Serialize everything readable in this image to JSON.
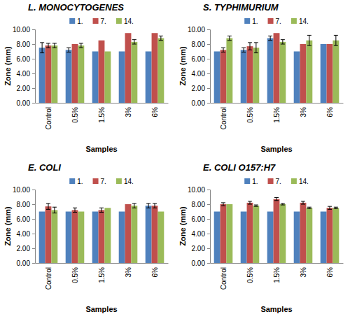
{
  "chart_data": [
    {
      "type": "bar",
      "title": "L. MONOCYTOGENES",
      "x_label": "Samples",
      "y_label": "Zone (mm)",
      "categories": [
        "Control",
        "0.5%",
        "1.5%",
        "3%",
        "6%"
      ],
      "series": [
        {
          "name": "1.",
          "color": "#4f81bd",
          "values": [
            7.5,
            7.2,
            7.0,
            7.0,
            7.0
          ],
          "errors": [
            0.7,
            0.3,
            0,
            0,
            0
          ]
        },
        {
          "name": "7.",
          "color": "#c0504d",
          "values": [
            7.8,
            8.0,
            8.5,
            9.5,
            9.5
          ],
          "errors": [
            0.3,
            0,
            0,
            0,
            0
          ]
        },
        {
          "name": "14.",
          "color": "#9bbb59",
          "values": [
            7.8,
            7.8,
            7.0,
            8.3,
            8.8
          ],
          "errors": [
            0.3,
            0.3,
            0,
            0.3,
            0.3
          ]
        }
      ],
      "ylim": [
        0,
        10
      ],
      "yticks": [
        {
          "value": 0,
          "label": "0.00"
        },
        {
          "value": 2,
          "label": "2.00"
        },
        {
          "value": 4,
          "label": "4.00"
        },
        {
          "value": 6,
          "label": "6.00"
        },
        {
          "value": 8,
          "label": "8.00"
        },
        {
          "value": 10,
          "label": "10.00"
        }
      ],
      "grid": false,
      "legend": "top"
    },
    {
      "type": "bar",
      "title": "S. TYPHIMURIUM",
      "x_label": "Samples",
      "y_label": "Zone (mm)",
      "categories": [
        "Control",
        "0.5%",
        "1.5%",
        "3%",
        "6%"
      ],
      "series": [
        {
          "name": "1.",
          "color": "#4f81bd",
          "values": [
            7.0,
            7.2,
            8.8,
            7.0,
            8.0
          ],
          "errors": [
            0,
            0.3,
            0.3,
            0,
            0
          ]
        },
        {
          "name": "7.",
          "color": "#c0504d",
          "values": [
            7.2,
            7.7,
            9.5,
            8.0,
            8.0
          ],
          "errors": [
            0.3,
            0.5,
            0,
            0,
            0
          ]
        },
        {
          "name": "14.",
          "color": "#9bbb59",
          "values": [
            8.8,
            7.5,
            8.3,
            8.5,
            8.5
          ],
          "errors": [
            0.3,
            0.7,
            0.3,
            0.7,
            0.7
          ]
        }
      ],
      "ylim": [
        0,
        10
      ],
      "yticks": [
        {
          "value": 0,
          "label": "0.00"
        },
        {
          "value": 2,
          "label": "2.00"
        },
        {
          "value": 4,
          "label": "4.00"
        },
        {
          "value": 6,
          "label": "6.00"
        },
        {
          "value": 8,
          "label": "8.00"
        },
        {
          "value": 10,
          "label": "10.00"
        }
      ],
      "grid": false,
      "legend": "top"
    },
    {
      "type": "bar",
      "title": "E. COLI",
      "x_label": "Samples",
      "y_label": "Zone (mm)",
      "categories": [
        "Control",
        "0.5%",
        "1.5%",
        "3%",
        "6%"
      ],
      "series": [
        {
          "name": "1.",
          "color": "#4f81bd",
          "values": [
            7.0,
            7.0,
            7.0,
            7.0,
            7.8
          ],
          "errors": [
            0,
            0,
            0,
            0,
            0.3
          ]
        },
        {
          "name": "7.",
          "color": "#c0504d",
          "values": [
            7.7,
            7.2,
            7.2,
            8.0,
            7.8
          ],
          "errors": [
            0.4,
            0.3,
            0.3,
            0,
            0.3
          ]
        },
        {
          "name": "14.",
          "color": "#9bbb59",
          "values": [
            7.2,
            7.0,
            7.5,
            7.8,
            7.0
          ],
          "errors": [
            0.4,
            0,
            0,
            0.3,
            0
          ]
        }
      ],
      "ylim": [
        0,
        10
      ],
      "yticks": [
        {
          "value": 0,
          "label": "0.00"
        },
        {
          "value": 2,
          "label": "2.00"
        },
        {
          "value": 4,
          "label": "4.00"
        },
        {
          "value": 6,
          "label": "6.00"
        },
        {
          "value": 8,
          "label": "8.00"
        },
        {
          "value": 10,
          "label": "10.00"
        }
      ],
      "grid": false,
      "legend": "top"
    },
    {
      "type": "bar",
      "title": "E. COLI O157:H7",
      "x_label": "Samples",
      "y_label": "Zone (mm)",
      "categories": [
        "Control",
        "0.5%",
        "1.5%",
        "3%",
        "6%"
      ],
      "series": [
        {
          "name": "1.",
          "color": "#4f81bd",
          "values": [
            7.0,
            7.0,
            7.0,
            7.0,
            7.0
          ],
          "errors": [
            0,
            0,
            0,
            0,
            0
          ]
        },
        {
          "name": "7.",
          "color": "#c0504d",
          "values": [
            8.0,
            8.2,
            8.7,
            8.2,
            7.5
          ],
          "errors": [
            0.2,
            0.2,
            0.2,
            0.2,
            0.2
          ]
        },
        {
          "name": "14.",
          "color": "#9bbb59",
          "values": [
            8.0,
            7.8,
            8.0,
            7.5,
            7.5
          ],
          "errors": [
            0,
            0.1,
            0.1,
            0.1,
            0.1
          ]
        }
      ],
      "ylim": [
        0,
        10
      ],
      "yticks": [
        {
          "value": 0,
          "label": "0.00"
        },
        {
          "value": 2,
          "label": "2.00"
        },
        {
          "value": 4,
          "label": "4.00"
        },
        {
          "value": 6,
          "label": "6.00"
        },
        {
          "value": 8,
          "label": "8.00"
        },
        {
          "value": 10,
          "label": "10.00"
        }
      ],
      "grid": false,
      "legend": "top"
    }
  ]
}
